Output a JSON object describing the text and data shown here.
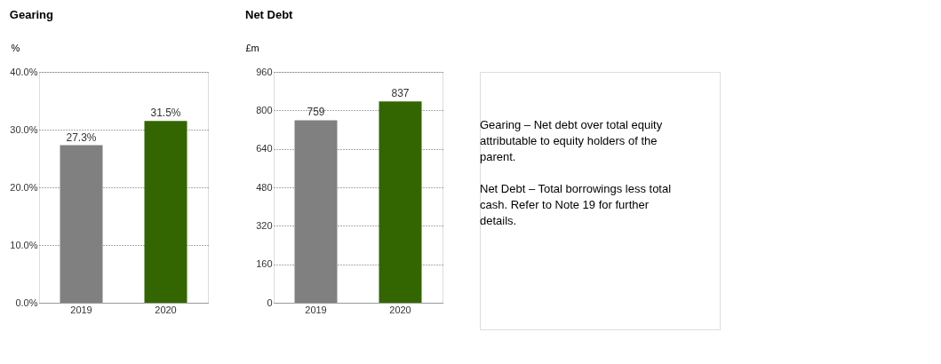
{
  "chart_data": [
    {
      "type": "bar",
      "title": "Gearing",
      "ylabel": "%",
      "categories": [
        "2019",
        "2020"
      ],
      "values": [
        27.3,
        31.5
      ],
      "colors": [
        "#808080",
        "#336600"
      ],
      "value_labels": [
        "27.3%",
        "31.5%"
      ],
      "ylim": [
        0,
        40
      ],
      "yticks": [
        {
          "value": 0,
          "label": "0.0%"
        },
        {
          "value": 10,
          "label": "10.0%"
        },
        {
          "value": 20,
          "label": "20.0%"
        },
        {
          "value": 30,
          "label": "30.0%"
        },
        {
          "value": 40,
          "label": "40.0%"
        }
      ],
      "grid": "y"
    },
    {
      "type": "bar",
      "title": "Net Debt",
      "ylabel": "£m",
      "categories": [
        "2019",
        "2020"
      ],
      "values": [
        759,
        837
      ],
      "colors": [
        "#808080",
        "#336600"
      ],
      "data_labels": true,
      "ylim": [
        0,
        960
      ],
      "yticks": [
        0,
        160,
        320,
        480,
        640,
        800,
        960
      ],
      "grid": "y"
    },
    {
      "type": "other",
      "annotations": [
        "Gearing – Net debt over total equity attributable to equity holders of the parent.",
        "Net Debt – Total borrowings less total cash. Refer to Note 19 for further details."
      ]
    }
  ]
}
